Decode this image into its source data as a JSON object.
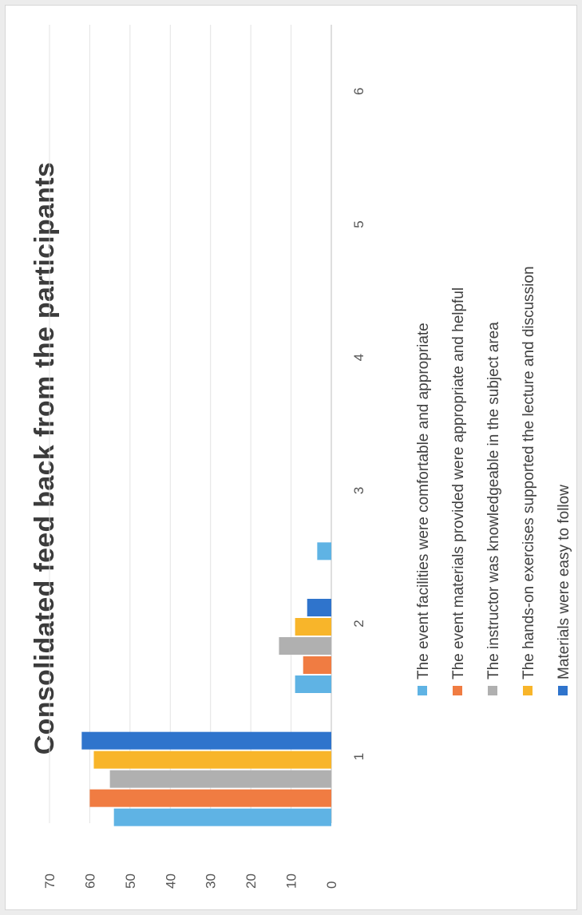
{
  "chart_data": {
    "type": "bar",
    "title": "Consolidated feed back from the participants",
    "categories": [
      "1",
      "2",
      "3",
      "4",
      "5",
      "6"
    ],
    "ylim": [
      0,
      70
    ],
    "yticks": [
      0,
      10,
      20,
      30,
      40,
      50,
      60,
      70
    ],
    "grid": true,
    "legend_position": "bottom",
    "series": [
      {
        "name": "The event facilities were comfortable and appropriate",
        "color": "#5fb3e4",
        "values": [
          54,
          9,
          3.5,
          0,
          0,
          0
        ]
      },
      {
        "name": "The event materials provided were appropriate and helpful",
        "color": "#f07c42",
        "values": [
          60,
          7,
          0,
          0,
          0,
          0
        ]
      },
      {
        "name": "The instructor was knowledgeable in the subject area",
        "color": "#b0b0b0",
        "values": [
          55,
          13,
          0,
          0,
          0,
          0
        ]
      },
      {
        "name": "The hands-on exercises supported the lecture and discussion",
        "color": "#f8b52a",
        "values": [
          59,
          9,
          0,
          0,
          0,
          0
        ]
      },
      {
        "name": "Materials were easy to follow",
        "color": "#2f74cc",
        "values": [
          62,
          6,
          0,
          0,
          0,
          0
        ]
      }
    ]
  }
}
